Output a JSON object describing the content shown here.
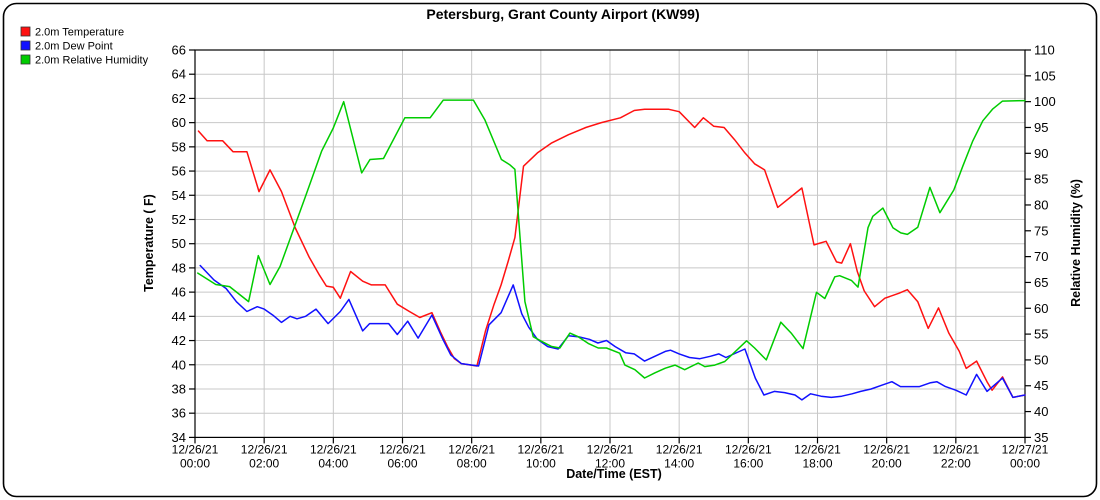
{
  "chart_data": {
    "type": "line",
    "title": "Petersburg, Grant County Airport (KW99)",
    "xlabel": "Date/Time (EST)",
    "ylabel_left": "Temperature ( F)",
    "ylabel_right": "Relative Humidity (%)",
    "grid": true,
    "legend_position": "top-left",
    "colors": {
      "grid": "#c8c8c8",
      "axis": "#000000",
      "background": "#ffffff"
    },
    "y_left": {
      "min": 34,
      "max": 66,
      "step": 2,
      "units": "F"
    },
    "y_right": {
      "min": 35,
      "max": 110,
      "step": 5,
      "units": "%"
    },
    "x_tick_interval_hours": 2,
    "x_ticks": [
      {
        "date": "12/26/21",
        "time": "00:00"
      },
      {
        "date": "12/26/21",
        "time": "02:00"
      },
      {
        "date": "12/26/21",
        "time": "04:00"
      },
      {
        "date": "12/26/21",
        "time": "06:00"
      },
      {
        "date": "12/26/21",
        "time": "08:00"
      },
      {
        "date": "12/26/21",
        "time": "10:00"
      },
      {
        "date": "12/26/21",
        "time": "12:00"
      },
      {
        "date": "12/26/21",
        "time": "14:00"
      },
      {
        "date": "12/26/21",
        "time": "16:00"
      },
      {
        "date": "12/26/21",
        "time": "18:00"
      },
      {
        "date": "12/26/21",
        "time": "20:00"
      },
      {
        "date": "12/26/21",
        "time": "22:00"
      },
      {
        "date": "12/27/21",
        "time": "00:00"
      }
    ],
    "series": [
      {
        "name": "2.0m Temperature",
        "axis": "left",
        "color": "#ff1111",
        "points": [
          [
            0.1,
            59.3
          ],
          [
            0.35,
            58.5
          ],
          [
            0.8,
            58.5
          ],
          [
            1.1,
            57.6
          ],
          [
            1.5,
            57.6
          ],
          [
            1.85,
            54.3
          ],
          [
            2.17,
            56.1
          ],
          [
            2.5,
            54.3
          ],
          [
            2.9,
            51.3
          ],
          [
            3.3,
            48.9
          ],
          [
            3.6,
            47.4
          ],
          [
            3.8,
            46.5
          ],
          [
            4.0,
            46.4
          ],
          [
            4.2,
            45.5
          ],
          [
            4.5,
            47.7
          ],
          [
            4.85,
            46.9
          ],
          [
            5.1,
            46.6
          ],
          [
            5.5,
            46.6
          ],
          [
            5.85,
            45.0
          ],
          [
            6.2,
            44.4
          ],
          [
            6.5,
            43.9
          ],
          [
            6.85,
            44.3
          ],
          [
            7.1,
            42.7
          ],
          [
            7.3,
            41.5
          ],
          [
            7.5,
            40.5
          ],
          [
            7.7,
            40.1
          ],
          [
            8.15,
            39.9
          ],
          [
            8.4,
            42.8
          ],
          [
            8.65,
            45.0
          ],
          [
            8.85,
            46.6
          ],
          [
            9.05,
            48.5
          ],
          [
            9.25,
            50.5
          ],
          [
            9.5,
            56.4
          ],
          [
            9.9,
            57.5
          ],
          [
            10.3,
            58.3
          ],
          [
            10.8,
            59.0
          ],
          [
            11.3,
            59.6
          ],
          [
            11.75,
            60.0
          ],
          [
            12.3,
            60.4
          ],
          [
            12.7,
            61.0
          ],
          [
            13.0,
            61.1
          ],
          [
            13.7,
            61.1
          ],
          [
            14.0,
            60.9
          ],
          [
            14.45,
            59.6
          ],
          [
            14.7,
            60.4
          ],
          [
            15.0,
            59.7
          ],
          [
            15.3,
            59.6
          ],
          [
            15.6,
            58.6
          ],
          [
            15.9,
            57.5
          ],
          [
            16.18,
            56.6
          ],
          [
            16.47,
            56.1
          ],
          [
            16.85,
            53.0
          ],
          [
            17.55,
            54.6
          ],
          [
            17.9,
            49.9
          ],
          [
            18.25,
            50.2
          ],
          [
            18.55,
            48.5
          ],
          [
            18.7,
            48.4
          ],
          [
            18.95,
            50.0
          ],
          [
            19.15,
            47.7
          ],
          [
            19.35,
            46.1
          ],
          [
            19.65,
            44.8
          ],
          [
            19.95,
            45.5
          ],
          [
            20.35,
            45.9
          ],
          [
            20.6,
            46.2
          ],
          [
            20.9,
            45.2
          ],
          [
            21.2,
            43.0
          ],
          [
            21.5,
            44.7
          ],
          [
            21.8,
            42.6
          ],
          [
            22.1,
            41.1
          ],
          [
            22.3,
            39.7
          ],
          [
            22.6,
            40.3
          ],
          [
            22.9,
            38.6
          ],
          [
            23.05,
            37.9
          ],
          [
            23.35,
            39.0
          ],
          [
            23.65,
            37.3
          ],
          [
            24.0,
            37.5
          ]
        ]
      },
      {
        "name": "2.0m Dew Point",
        "axis": "left",
        "color": "#1111ff",
        "points": [
          [
            0.15,
            48.2
          ],
          [
            0.55,
            47.0
          ],
          [
            0.9,
            46.3
          ],
          [
            1.2,
            45.2
          ],
          [
            1.5,
            44.4
          ],
          [
            1.8,
            44.8
          ],
          [
            2.0,
            44.6
          ],
          [
            2.25,
            44.1
          ],
          [
            2.5,
            43.5
          ],
          [
            2.75,
            44.0
          ],
          [
            2.95,
            43.8
          ],
          [
            3.2,
            44.0
          ],
          [
            3.5,
            44.6
          ],
          [
            3.85,
            43.4
          ],
          [
            4.2,
            44.4
          ],
          [
            4.45,
            45.4
          ],
          [
            4.85,
            42.8
          ],
          [
            5.05,
            43.4
          ],
          [
            5.6,
            43.4
          ],
          [
            5.85,
            42.5
          ],
          [
            6.15,
            43.6
          ],
          [
            6.45,
            42.2
          ],
          [
            6.85,
            44.1
          ],
          [
            7.15,
            42.2
          ],
          [
            7.4,
            40.8
          ],
          [
            7.7,
            40.1
          ],
          [
            8.2,
            39.9
          ],
          [
            8.5,
            43.3
          ],
          [
            8.85,
            44.3
          ],
          [
            9.2,
            46.6
          ],
          [
            9.45,
            44.2
          ],
          [
            9.65,
            43.1
          ],
          [
            9.9,
            42.1
          ],
          [
            10.2,
            41.5
          ],
          [
            10.5,
            41.3
          ],
          [
            10.8,
            42.4
          ],
          [
            11.1,
            42.3
          ],
          [
            11.4,
            42.1
          ],
          [
            11.65,
            41.8
          ],
          [
            11.9,
            42.0
          ],
          [
            12.15,
            41.5
          ],
          [
            12.45,
            41.0
          ],
          [
            12.7,
            40.9
          ],
          [
            13.0,
            40.3
          ],
          [
            13.6,
            41.1
          ],
          [
            13.75,
            41.2
          ],
          [
            14.0,
            40.9
          ],
          [
            14.3,
            40.6
          ],
          [
            14.6,
            40.5
          ],
          [
            14.9,
            40.7
          ],
          [
            15.15,
            40.9
          ],
          [
            15.35,
            40.6
          ],
          [
            15.9,
            41.3
          ],
          [
            16.2,
            38.9
          ],
          [
            16.45,
            37.5
          ],
          [
            16.75,
            37.8
          ],
          [
            17.05,
            37.7
          ],
          [
            17.35,
            37.5
          ],
          [
            17.55,
            37.1
          ],
          [
            17.8,
            37.6
          ],
          [
            18.1,
            37.4
          ],
          [
            18.4,
            37.3
          ],
          [
            18.7,
            37.4
          ],
          [
            19.0,
            37.6
          ],
          [
            19.25,
            37.8
          ],
          [
            19.55,
            38.0
          ],
          [
            19.85,
            38.3
          ],
          [
            20.15,
            38.6
          ],
          [
            20.4,
            38.2
          ],
          [
            20.95,
            38.2
          ],
          [
            21.25,
            38.5
          ],
          [
            21.45,
            38.6
          ],
          [
            21.7,
            38.2
          ],
          [
            22.0,
            37.9
          ],
          [
            22.3,
            37.5
          ],
          [
            22.6,
            39.2
          ],
          [
            22.9,
            37.8
          ],
          [
            23.35,
            38.9
          ],
          [
            23.65,
            37.3
          ],
          [
            24.0,
            37.5
          ]
        ]
      },
      {
        "name": "2.0m Relative Humidity",
        "axis": "right",
        "color": "#00cc00",
        "points": [
          [
            0.08,
            66.8
          ],
          [
            0.6,
            64.6
          ],
          [
            1.0,
            64.2
          ],
          [
            1.55,
            61.3
          ],
          [
            1.83,
            70.2
          ],
          [
            2.17,
            64.6
          ],
          [
            2.46,
            68.1
          ],
          [
            3.18,
            81.4
          ],
          [
            3.66,
            90.4
          ],
          [
            4.0,
            94.9
          ],
          [
            4.3,
            100.0
          ],
          [
            4.82,
            86.2
          ],
          [
            5.06,
            88.8
          ],
          [
            5.45,
            89.0
          ],
          [
            6.07,
            96.9
          ],
          [
            6.8,
            96.9
          ],
          [
            7.18,
            100.3
          ],
          [
            8.05,
            100.3
          ],
          [
            8.38,
            96.5
          ],
          [
            8.86,
            88.8
          ],
          [
            9.1,
            87.8
          ],
          [
            9.25,
            86.9
          ],
          [
            9.54,
            61.3
          ],
          [
            9.78,
            54.5
          ],
          [
            10.02,
            53.6
          ],
          [
            10.31,
            52.6
          ],
          [
            10.55,
            52.3
          ],
          [
            10.84,
            55.2
          ],
          [
            11.08,
            54.5
          ],
          [
            11.37,
            53.2
          ],
          [
            11.66,
            52.3
          ],
          [
            11.9,
            52.3
          ],
          [
            12.28,
            51.3
          ],
          [
            12.43,
            49.0
          ],
          [
            12.72,
            48.1
          ],
          [
            13.0,
            46.5
          ],
          [
            13.3,
            47.5
          ],
          [
            13.6,
            48.4
          ],
          [
            13.88,
            49.0
          ],
          [
            14.16,
            48.1
          ],
          [
            14.55,
            49.4
          ],
          [
            14.74,
            48.7
          ],
          [
            15.03,
            49.0
          ],
          [
            15.32,
            49.7
          ],
          [
            15.95,
            53.7
          ],
          [
            16.18,
            52.3
          ],
          [
            16.52,
            50.0
          ],
          [
            16.94,
            57.3
          ],
          [
            17.24,
            55.2
          ],
          [
            17.58,
            52.2
          ],
          [
            17.97,
            63.1
          ],
          [
            18.21,
            61.9
          ],
          [
            18.5,
            66.1
          ],
          [
            18.64,
            66.3
          ],
          [
            18.98,
            65.4
          ],
          [
            19.17,
            64.1
          ],
          [
            19.46,
            75.6
          ],
          [
            19.6,
            77.8
          ],
          [
            19.89,
            79.4
          ],
          [
            20.18,
            75.6
          ],
          [
            20.41,
            74.6
          ],
          [
            20.6,
            74.3
          ],
          [
            20.9,
            75.7
          ],
          [
            21.25,
            83.4
          ],
          [
            21.54,
            78.5
          ],
          [
            21.94,
            82.9
          ],
          [
            22.2,
            87.5
          ],
          [
            22.49,
            92.4
          ],
          [
            22.78,
            96.3
          ],
          [
            23.07,
            98.6
          ],
          [
            23.35,
            100.1
          ],
          [
            24.0,
            100.2
          ]
        ]
      }
    ]
  }
}
